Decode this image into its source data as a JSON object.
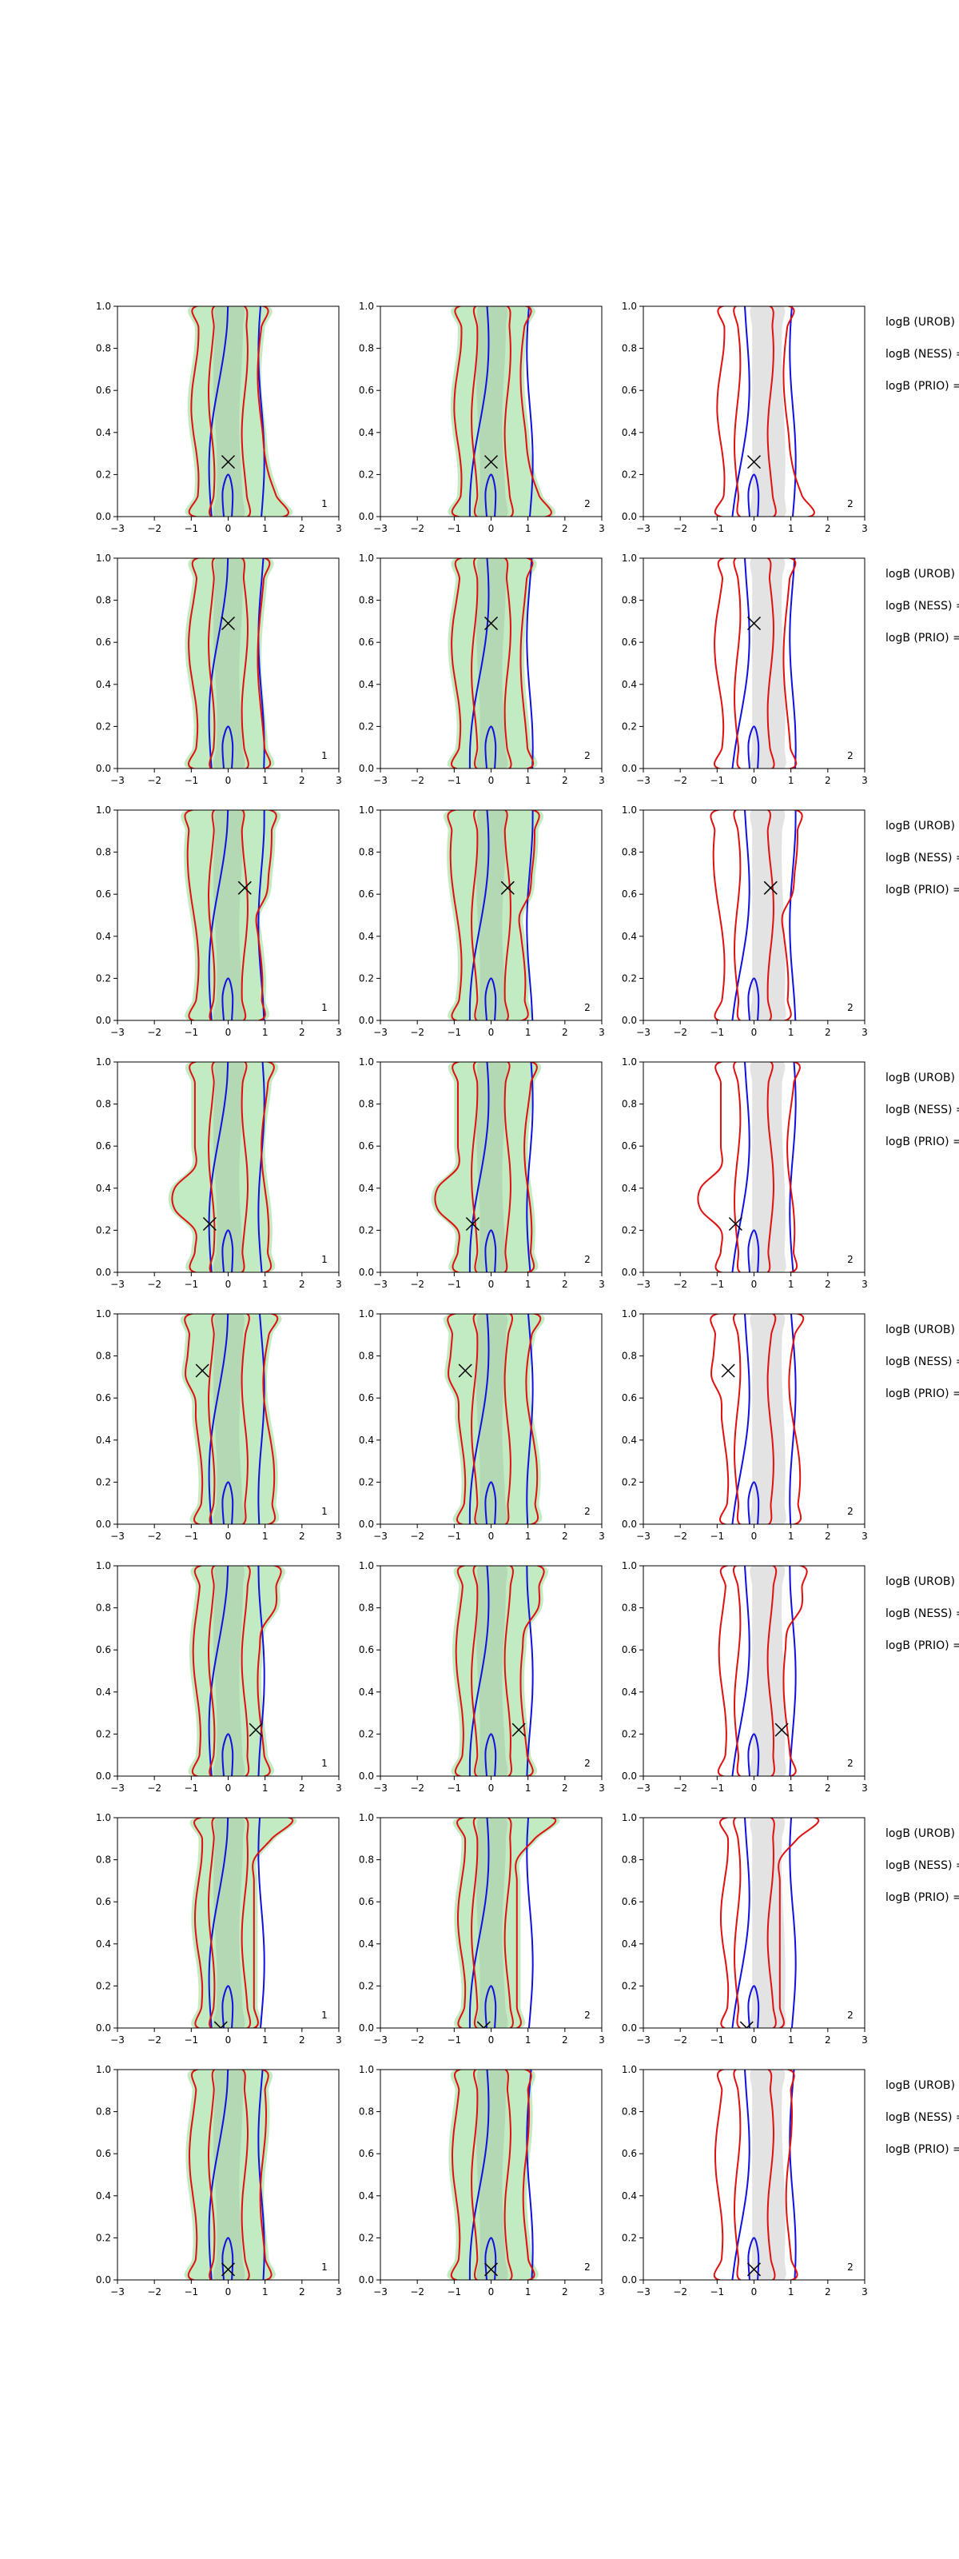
{
  "chart_data": {
    "type": "contour",
    "layout": {
      "rows": 8,
      "cols": 3
    },
    "xlim": [
      -3,
      3
    ],
    "ylim": [
      0,
      1
    ],
    "xticks": [
      "−3",
      "−2",
      "−1",
      "0",
      "1",
      "2",
      "3"
    ],
    "yticks": [
      "0.0",
      "0.2",
      "0.4",
      "0.6",
      "0.8",
      "1.0"
    ],
    "column_badges": [
      "1",
      "2",
      "2"
    ],
    "row_notes": [
      "logB (UROB) =",
      "logB (NESS) =",
      "logB (PRIO) ="
    ],
    "colors": {
      "fill_green": "#b7e8b7",
      "fill_grey": "#dcdcdc",
      "blue": "#1010e0",
      "red": "#e01010",
      "marker": "#000000"
    },
    "rows": [
      {
        "marker": {
          "x": 0.0,
          "y": 0.26
        },
        "shape": "bottom-lobe-right"
      },
      {
        "marker": {
          "x": 0.0,
          "y": 0.69
        },
        "shape": "bottom-lobe-left"
      },
      {
        "marker": {
          "x": 0.45,
          "y": 0.63
        },
        "shape": "top-bulge"
      },
      {
        "marker": {
          "x": -0.5,
          "y": 0.23
        },
        "shape": "left-lobe-low"
      },
      {
        "marker": {
          "x": -0.7,
          "y": 0.73
        },
        "shape": "left-lobe-high"
      },
      {
        "marker": {
          "x": 0.75,
          "y": 0.22
        },
        "shape": "top-bulge-right"
      },
      {
        "marker": {
          "x": -0.2,
          "y": 0.0
        },
        "shape": "top-spread-right"
      },
      {
        "marker": {
          "x": 0.0,
          "y": 0.05
        },
        "shape": "plain"
      }
    ]
  }
}
